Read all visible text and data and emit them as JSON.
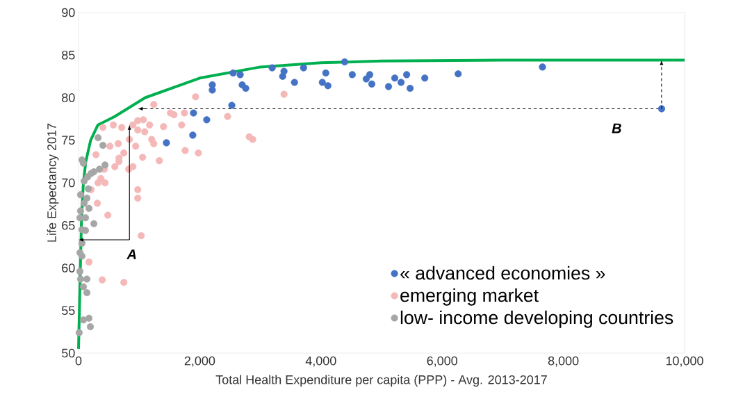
{
  "chart_data": {
    "type": "scatter",
    "xlabel": "Total Health Expenditure per capita (PPP) - Avg. 2013-2017",
    "ylabel": "Life Expectancy 2017",
    "xlim": [
      0,
      10000
    ],
    "ylim": [
      50,
      90
    ],
    "xticks": [
      0,
      {
        "value": 2000,
        "label": "2,000"
      },
      {
        "value": 4000,
        "label": "4,000"
      },
      {
        "value": 6000,
        "label": "6,000"
      },
      {
        "value": 8000,
        "label": "8,000"
      },
      {
        "value": 10000,
        "label": "10,000"
      }
    ],
    "yticks": [
      50,
      55,
      60,
      65,
      70,
      75,
      80,
      85,
      90
    ],
    "grid": false,
    "legend": "bottom right",
    "marker": "circle",
    "annotations": [
      {
        "text": "A",
        "x": 840,
        "y": 76.8
      },
      "B"
    ],
    "series": [
      {
        "type": "line",
        "color": "#000000",
        "marker": "none",
        "line_style": "dashed",
        "x": [
          1000,
          9620
        ],
        "values": [
          78.7,
          78.7
        ]
      },
      {
        "type": "line",
        "color": "#00b050",
        "marker": "none",
        "x": [
          0,
          30,
          50,
          80,
          120,
          200,
          320,
          600,
          1100,
          2000,
          3000,
          4000,
          5000,
          7000,
          10000
        ],
        "values": [
          50.5,
          60,
          66,
          70,
          72.5,
          75,
          76.8,
          77.8,
          80.0,
          82.3,
          83.6,
          84.1,
          84.3,
          84.4,
          84.4
        ]
      },
      {
        "name": "« advanced economies »",
        "color": "#4472c4",
        "x": [
          1450,
          1885,
          1897,
          2115,
          2207,
          2207,
          2529,
          2550,
          2667,
          2700,
          2759,
          3195,
          3390,
          3368,
          3563,
          3713,
          4080,
          4023,
          4115,
          4391,
          4517,
          4747,
          4805,
          4839,
          5115,
          5218,
          5322,
          5414,
          5471,
          5713,
          6264,
          7655,
          9621
        ],
        "values": [
          74.7,
          75.6,
          78.2,
          77.4,
          81.5,
          80.9,
          79.1,
          82.9,
          82.7,
          81.5,
          81.1,
          83.5,
          83.1,
          82.5,
          81.8,
          83.5,
          82.9,
          81.8,
          81.4,
          84.2,
          82.7,
          82.2,
          82.7,
          81.6,
          81.3,
          82.3,
          81.8,
          82.7,
          81.1,
          82.3,
          82.8,
          83.6,
          78.7
        ]
      },
      {
        "name": "emerging market",
        "color": "#f4b8b8",
        "x": [
          1931,
          3391,
          2460,
          2816,
          2874,
          1759,
          1977,
          1333,
          1057,
          1241,
          1402,
          1701,
          1575,
          1747,
          1172,
          1069,
          977,
          897,
          977,
          977,
          483,
          310,
          1034,
          172,
          391,
          747,
          437,
          322,
          425,
          598,
          667,
          747,
          655,
          517,
          287,
          402,
          575,
          713,
          897,
          977,
          1092,
          1207,
          839,
          943,
          667,
          828,
          368,
          207,
          1517,
          1241
        ],
        "values": [
          80.1,
          80.4,
          77.8,
          75.4,
          75.1,
          73.8,
          73.5,
          72.6,
          73.0,
          74.6,
          76.6,
          76.8,
          78.0,
          78.2,
          76.8,
          77.4,
          76.2,
          71.9,
          69.2,
          68.2,
          66.2,
          67.6,
          63.8,
          60.7,
          58.6,
          58.3,
          70.0,
          70.0,
          71.6,
          71.9,
          72.5,
          73.5,
          74.6,
          74.3,
          73.3,
          76.5,
          76.8,
          76.5,
          76.8,
          77.3,
          76.0,
          75.1,
          75.1,
          74.3,
          72.9,
          71.6,
          70.5,
          69.2,
          78.2,
          79.2
        ]
      },
      {
        "name": "low- income developing countries",
        "color": "#a6a6a6",
        "x": [
          322,
          402,
          437,
          345,
          253,
          207,
          149,
          92,
          57,
          80,
          161,
          34,
          138,
          92,
          172,
          34,
          115,
          23,
          253,
          57,
          115,
          57,
          23,
          57,
          23,
          34,
          138,
          80,
          138,
          80,
          172,
          195,
          10
        ],
        "values": [
          75.3,
          74.4,
          72.1,
          71.6,
          71.3,
          71.1,
          70.7,
          70.2,
          72.7,
          72.3,
          69.3,
          68.6,
          68.2,
          67.6,
          67.0,
          66.7,
          65.9,
          65.9,
          65.2,
          64.5,
          64.4,
          62.9,
          61.8,
          61.4,
          59.6,
          58.7,
          58.7,
          57.8,
          57.1,
          53.9,
          54.1,
          53.1,
          52.4
        ]
      }
    ]
  }
}
